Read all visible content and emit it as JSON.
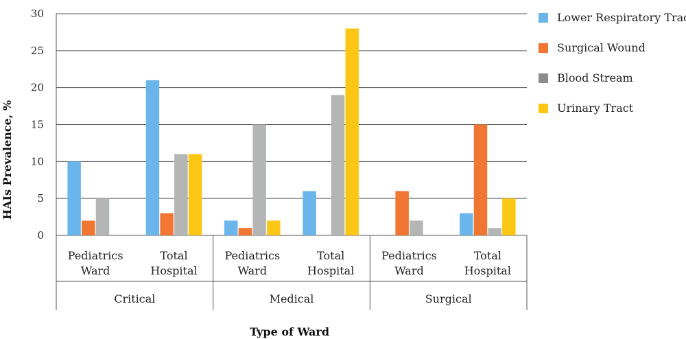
{
  "chart_data": {
    "type": "bar",
    "ylabel": "HAIs Prevalence, %",
    "xlabel": "Type of Ward",
    "ylim": [
      0,
      30
    ],
    "yticks": [
      "0",
      "5",
      "10",
      "15",
      "20",
      "25",
      "30"
    ],
    "grid": true,
    "legend_position": "right",
    "groups": [
      {
        "label": "Critical",
        "categories": [
          [
            "Pediatrics",
            "Ward"
          ],
          [
            "Total",
            "Hospital"
          ]
        ]
      },
      {
        "label": "Medical",
        "categories": [
          [
            "Pediatrics",
            "Ward"
          ],
          [
            "Total",
            "Hospital"
          ]
        ]
      },
      {
        "label": "Surgical",
        "categories": [
          [
            "Pediatrics",
            "Ward"
          ],
          [
            "Total",
            "Hospital"
          ]
        ]
      }
    ],
    "series": [
      {
        "name": "Lower Respiratory Tract",
        "color": "#6ab6ea",
        "values": [
          10,
          21,
          2,
          6,
          0,
          3
        ]
      },
      {
        "name": "Surgical Wound",
        "color": "#f07632",
        "values": [
          2,
          3,
          1,
          0,
          6,
          15
        ]
      },
      {
        "name": "Blood Stream",
        "color": "#b3b6b5",
        "values": [
          5,
          11,
          15,
          19,
          2,
          1
        ]
      },
      {
        "name": "Urinary Tract",
        "color": "#fcc714",
        "values": [
          0,
          11,
          2,
          28,
          0,
          5
        ]
      }
    ]
  }
}
